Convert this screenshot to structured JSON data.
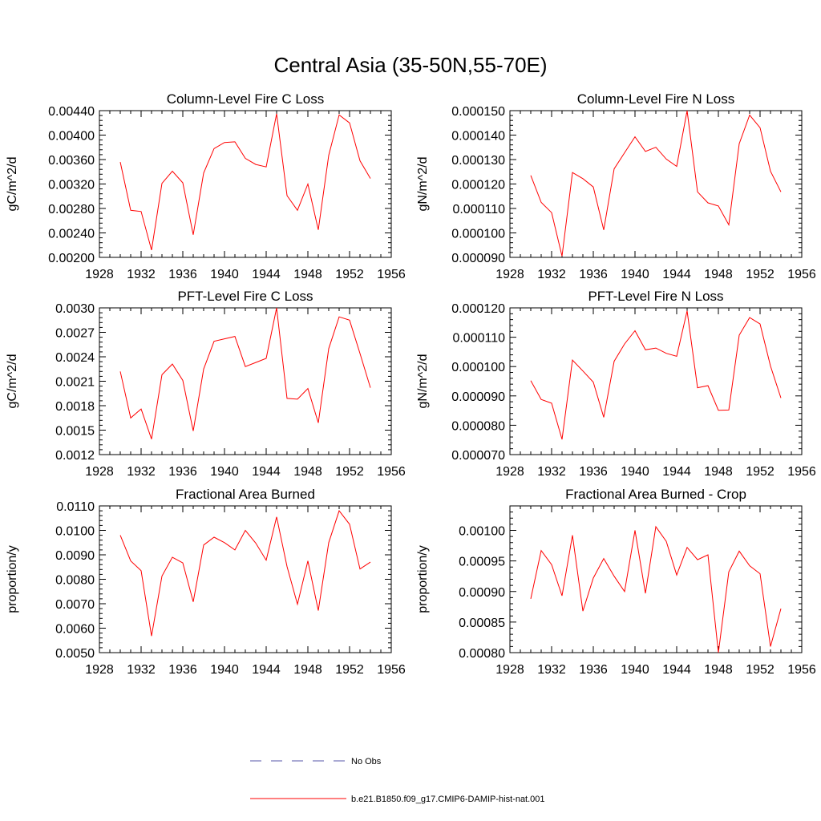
{
  "figure": {
    "title": "Central Asia (35-50N,55-70E)"
  },
  "chart_data": [
    {
      "type": "line",
      "title": "Column-Level Fire C Loss",
      "xlabel": "",
      "ylabel": "gC/m^2/d",
      "xlim": [
        1928,
        1956
      ],
      "ylim": [
        0.002,
        0.0044
      ],
      "xticks": [
        "1928",
        "1932",
        "1936",
        "1940",
        "1944",
        "1948",
        "1952",
        "1956"
      ],
      "yticks": [
        "0.00200",
        "0.00240",
        "0.00280",
        "0.00320",
        "0.00360",
        "0.00400",
        "0.00440"
      ],
      "ytick_values": [
        0.002,
        0.0024,
        0.0028,
        0.0032,
        0.0036,
        0.004,
        0.0044
      ],
      "series": [
        {
          "color": "#ff0000",
          "x": [
            1930,
            1931,
            1932,
            1933,
            1934,
            1935,
            1936,
            1937,
            1938,
            1939,
            1940,
            1941,
            1942,
            1943,
            1944,
            1945,
            1946,
            1947,
            1948,
            1949,
            1950,
            1951,
            1952,
            1953,
            1954
          ],
          "values": [
            0.00356,
            0.00277,
            0.00275,
            0.00212,
            0.00321,
            0.00341,
            0.00322,
            0.00237,
            0.00338,
            0.00378,
            0.00388,
            0.00389,
            0.00362,
            0.00352,
            0.00348,
            0.00435,
            0.00301,
            0.00277,
            0.0032,
            0.00245,
            0.00367,
            0.00433,
            0.0042,
            0.00358,
            0.00329
          ]
        }
      ]
    },
    {
      "type": "line",
      "title": "Column-Level Fire N Loss",
      "xlabel": "",
      "ylabel": "gN/m^2/d",
      "xlim": [
        1928,
        1956
      ],
      "ylim": [
        9e-05,
        0.00015
      ],
      "xticks": [
        "1928",
        "1932",
        "1936",
        "1940",
        "1944",
        "1948",
        "1952",
        "1956"
      ],
      "yticks": [
        "0.000090",
        "0.000100",
        "0.000110",
        "0.000120",
        "0.000130",
        "0.000140",
        "0.000150"
      ],
      "ytick_values": [
        9e-05,
        0.0001,
        0.00011,
        0.00012,
        0.00013,
        0.00014,
        0.00015
      ],
      "series": [
        {
          "color": "#ff0000",
          "x": [
            1930,
            1931,
            1932,
            1933,
            1934,
            1935,
            1936,
            1937,
            1938,
            1939,
            1940,
            1941,
            1942,
            1943,
            1944,
            1945,
            1946,
            1947,
            1948,
            1949,
            1950,
            1951,
            1952,
            1953,
            1954
          ],
          "values": [
            0.0001235,
            0.0001125,
            0.0001083,
            9.05e-05,
            0.0001247,
            0.0001222,
            0.0001188,
            0.0001012,
            0.0001262,
            0.0001328,
            0.0001393,
            0.0001333,
            0.000135,
            0.0001302,
            0.0001272,
            0.00015,
            0.0001168,
            0.0001123,
            0.000111,
            0.0001033,
            0.0001365,
            0.0001482,
            0.000143,
            0.0001252,
            0.0001168
          ]
        }
      ]
    },
    {
      "type": "line",
      "title": "PFT-Level Fire C Loss",
      "xlabel": "",
      "ylabel": "gC/m^2/d",
      "xlim": [
        1928,
        1956
      ],
      "ylim": [
        0.0012,
        0.003
      ],
      "xticks": [
        "1928",
        "1932",
        "1936",
        "1940",
        "1944",
        "1948",
        "1952",
        "1956"
      ],
      "yticks": [
        "0.0012",
        "0.0015",
        "0.0018",
        "0.0021",
        "0.0024",
        "0.0027",
        "0.0030"
      ],
      "ytick_values": [
        0.0012,
        0.0015,
        0.0018,
        0.0021,
        0.0024,
        0.0027,
        0.003
      ],
      "series": [
        {
          "color": "#ff0000",
          "x": [
            1930,
            1931,
            1932,
            1933,
            1934,
            1935,
            1936,
            1937,
            1938,
            1939,
            1940,
            1941,
            1942,
            1943,
            1944,
            1945,
            1946,
            1947,
            1948,
            1949,
            1950,
            1951,
            1952,
            1953,
            1954
          ],
          "values": [
            0.00222,
            0.00165,
            0.00176,
            0.00139,
            0.00218,
            0.00231,
            0.00211,
            0.00149,
            0.00225,
            0.00259,
            0.00262,
            0.00265,
            0.00228,
            0.00233,
            0.00238,
            0.003,
            0.00189,
            0.00188,
            0.00201,
            0.00159,
            0.0025,
            0.00289,
            0.00285,
            0.00244,
            0.00202
          ]
        }
      ]
    },
    {
      "type": "line",
      "title": "PFT-Level Fire N Loss",
      "xlabel": "",
      "ylabel": "gN/m^2/d",
      "xlim": [
        1928,
        1956
      ],
      "ylim": [
        7e-05,
        0.00012
      ],
      "xticks": [
        "1928",
        "1932",
        "1936",
        "1940",
        "1944",
        "1948",
        "1952",
        "1956"
      ],
      "yticks": [
        "0.000070",
        "0.000080",
        "0.000090",
        "0.000100",
        "0.000110",
        "0.000120"
      ],
      "ytick_values": [
        7e-05,
        8e-05,
        9e-05,
        0.0001,
        0.00011,
        0.00012
      ],
      "series": [
        {
          "color": "#ff0000",
          "x": [
            1930,
            1931,
            1932,
            1933,
            1934,
            1935,
            1936,
            1937,
            1938,
            1939,
            1940,
            1941,
            1942,
            1943,
            1944,
            1945,
            1946,
            1947,
            1948,
            1949,
            1950,
            1951,
            1952,
            1953,
            1954
          ],
          "values": [
            9.52e-05,
            8.88e-05,
            8.75e-05,
            7.52e-05,
            0.0001022,
            9.85e-05,
            9.47e-05,
            8.27e-05,
            0.0001018,
            0.0001077,
            0.0001122,
            0.0001057,
            0.0001063,
            0.0001045,
            0.0001035,
            0.000119,
            9.28e-05,
            9.35e-05,
            8.51e-05,
            8.52e-05,
            0.0001107,
            0.0001167,
            0.0001145,
            0.0001002,
            8.93e-05
          ]
        }
      ]
    },
    {
      "type": "line",
      "title": "Fractional Area Burned",
      "xlabel": "",
      "ylabel": "proportion/y",
      "xlim": [
        1928,
        1956
      ],
      "ylim": [
        0.005,
        0.011
      ],
      "xticks": [
        "1928",
        "1932",
        "1936",
        "1940",
        "1944",
        "1948",
        "1952",
        "1956"
      ],
      "yticks": [
        "0.0050",
        "0.0060",
        "0.0070",
        "0.0080",
        "0.0090",
        "0.0100",
        "0.0110"
      ],
      "ytick_values": [
        0.005,
        0.006,
        0.007,
        0.008,
        0.009,
        0.01,
        0.011
      ],
      "series": [
        {
          "color": "#ff0000",
          "x": [
            1930,
            1931,
            1932,
            1933,
            1934,
            1935,
            1936,
            1937,
            1938,
            1939,
            1940,
            1941,
            1942,
            1943,
            1944,
            1945,
            1946,
            1947,
            1948,
            1949,
            1950,
            1951,
            1952,
            1953,
            1954
          ],
          "values": [
            0.0098,
            0.00875,
            0.00835,
            0.00568,
            0.00813,
            0.0089,
            0.00867,
            0.00708,
            0.0094,
            0.00972,
            0.0095,
            0.0092,
            0.01,
            0.00948,
            0.00878,
            0.01055,
            0.00852,
            0.00698,
            0.00875,
            0.00672,
            0.0095,
            0.0108,
            0.01025,
            0.00842,
            0.0087
          ]
        }
      ]
    },
    {
      "type": "line",
      "title": "Fractional Area Burned - Crop",
      "xlabel": "",
      "ylabel": "proportion/y",
      "xlim": [
        1928,
        1956
      ],
      "ylim": [
        0.0008,
        0.00104
      ],
      "xticks": [
        "1928",
        "1932",
        "1936",
        "1940",
        "1944",
        "1948",
        "1952",
        "1956"
      ],
      "yticks": [
        "0.00080",
        "0.00085",
        "0.00090",
        "0.00095",
        "0.00100"
      ],
      "ytick_values": [
        0.0008,
        0.00085,
        0.0009,
        0.00095,
        0.001
      ],
      "series": [
        {
          "color": "#ff0000",
          "x": [
            1930,
            1931,
            1932,
            1933,
            1934,
            1935,
            1936,
            1937,
            1938,
            1939,
            1940,
            1941,
            1942,
            1943,
            1944,
            1945,
            1946,
            1947,
            1948,
            1949,
            1950,
            1951,
            1952,
            1953,
            1954
          ],
          "values": [
            0.000888,
            0.000967,
            0.000944,
            0.000893,
            0.000992,
            0.000868,
            0.000922,
            0.000954,
            0.000925,
            0.0009,
            0.001,
            0.000897,
            0.001006,
            0.000982,
            0.000927,
            0.000972,
            0.000952,
            0.00096,
            0.0008,
            0.000932,
            0.000966,
            0.000942,
            0.000929,
            0.00081,
            0.000872
          ]
        }
      ]
    }
  ],
  "legend": {
    "items": [
      {
        "label": "No Obs",
        "color": "#5555aa",
        "style": "dashed"
      },
      {
        "label": "b.e21.B1850.f09_g17.CMIP6-DAMIP-hist-nat.001",
        "color": "#ff0000",
        "style": "solid"
      }
    ]
  }
}
